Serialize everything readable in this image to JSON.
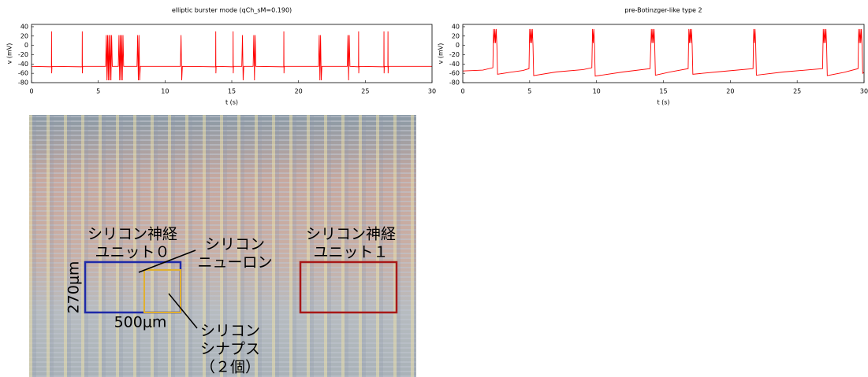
{
  "chart_data": [
    {
      "type": "line",
      "title": "elliptic burster mode (qCh_sM=0.190)",
      "x_label": "t (s)",
      "y_label": "v (mV)",
      "xlim": [
        0,
        30
      ],
      "xticks": [
        0,
        5,
        10,
        15,
        20,
        25,
        30
      ],
      "ylim": [
        -80,
        45
      ],
      "yticks": [
        40,
        20,
        0,
        -20,
        -40,
        -60,
        -80
      ],
      "series": [
        {
          "color": "#ff0000",
          "x": [
            0,
            1.49,
            1.5,
            1.51,
            1.53,
            3.79,
            3.8,
            3.81,
            3.83,
            5.55,
            5.6,
            5.65,
            5.7,
            5.75,
            5.8,
            5.85,
            5.9,
            5.95,
            6.0,
            6.05,
            6.5,
            6.55,
            6.6,
            6.65,
            6.7,
            6.75,
            6.8,
            6.85,
            6.9,
            7.9,
            7.95,
            8.0,
            8.05,
            8.1,
            8.15,
            11.15,
            11.2,
            11.25,
            11.3,
            13.79,
            13.8,
            13.81,
            13.83,
            15.09,
            15.1,
            15.11,
            15.13,
            15.75,
            15.8,
            15.85,
            15.9,
            16.6,
            16.65,
            16.7,
            16.75,
            16.8,
            18.89,
            18.9,
            18.91,
            18.93,
            21.5,
            21.55,
            21.6,
            21.65,
            21.7,
            21.75,
            23.65,
            23.7,
            23.75,
            23.8,
            23.85,
            24.49,
            24.5,
            24.51,
            24.53,
            26.39,
            26.4,
            26.41,
            26.43,
            26.69,
            26.7,
            26.71,
            26.73,
            30
          ],
          "values": [
            -45,
            -46,
            30,
            -60,
            -45,
            -46,
            30,
            -60,
            -45,
            -45,
            22,
            -75,
            22,
            -75,
            22,
            -75,
            22,
            -75,
            22,
            -45,
            -45,
            22,
            -75,
            22,
            -75,
            22,
            -75,
            22,
            -45,
            -45,
            22,
            -75,
            22,
            -75,
            -45,
            -45,
            22,
            -75,
            -45,
            -46,
            30,
            -60,
            -45,
            -46,
            30,
            -60,
            -45,
            -45,
            22,
            -75,
            -45,
            -45,
            22,
            -75,
            22,
            -45,
            -46,
            30,
            -60,
            -45,
            -45,
            22,
            -75,
            22,
            -75,
            -45,
            -45,
            22,
            -75,
            22,
            -45,
            -46,
            30,
            -60,
            -45,
            -46,
            30,
            -60,
            -45,
            -46,
            30,
            -60,
            -45,
            -45
          ]
        }
      ]
    },
    {
      "type": "line",
      "title": "pre-Botinzger-like type 2",
      "x_label": "t (s)",
      "y_label": "v (mV)",
      "xlim": [
        0,
        30
      ],
      "xticks": [
        0,
        5,
        10,
        15,
        20,
        25,
        30
      ],
      "ylim": [
        -80,
        45
      ],
      "yticks": [
        40,
        20,
        0,
        -20,
        -40,
        -60,
        -80
      ],
      "series": [
        {
          "color": "#ff0000",
          "x": [
            0,
            1.5,
            2.25,
            2.3,
            2.35,
            2.4,
            2.45,
            2.5,
            2.55,
            2.6,
            3.5,
            4.5,
            4.95,
            5.0,
            5.05,
            5.1,
            5.15,
            5.2,
            5.25,
            5.3,
            7,
            9,
            9.65,
            9.7,
            9.75,
            9.8,
            9.85,
            9.9,
            12,
            14,
            14.1,
            14.15,
            14.2,
            14.25,
            14.3,
            14.35,
            14.4,
            15.5,
            16.85,
            16.9,
            16.95,
            17.0,
            17.05,
            17.1,
            17.15,
            17.2,
            19,
            21.7,
            21.75,
            21.8,
            21.85,
            21.9,
            21.95,
            24,
            26.9,
            26.95,
            27.0,
            27.05,
            27.1,
            27.15,
            27.2,
            27.25,
            28.5,
            29.55,
            29.6,
            29.65,
            29.7,
            29.75,
            29.8,
            29.85,
            29.9,
            30
          ],
          "values": [
            -55,
            -53,
            -48,
            35,
            5,
            35,
            5,
            35,
            0,
            -62,
            -58,
            -54,
            -50,
            35,
            5,
            35,
            5,
            35,
            0,
            -65,
            -57,
            -52,
            -48,
            35,
            5,
            35,
            0,
            -66,
            -57,
            -50,
            35,
            5,
            35,
            5,
            35,
            0,
            -64,
            -57,
            -50,
            35,
            5,
            35,
            5,
            35,
            0,
            -62,
            -57,
            -50,
            35,
            5,
            35,
            0,
            -64,
            -57,
            -50,
            35,
            5,
            35,
            5,
            35,
            0,
            -65,
            -58,
            -50,
            35,
            5,
            35,
            5,
            35,
            0,
            -60,
            -58
          ]
        }
      ]
    }
  ],
  "image": {
    "labels": [
      {
        "lines": [
          "シリコン神経",
          "ユニット０"
        ]
      },
      {
        "lines": [
          "シリコン",
          "ニューロン"
        ]
      },
      {
        "lines": [
          "シリコン神経",
          "ユニット１"
        ]
      },
      {
        "lines": [
          "270μm"
        ]
      },
      {
        "lines": [
          "500μm"
        ]
      },
      {
        "lines": [
          "シリコン",
          "シナプス",
          "（２個）"
        ]
      }
    ]
  }
}
